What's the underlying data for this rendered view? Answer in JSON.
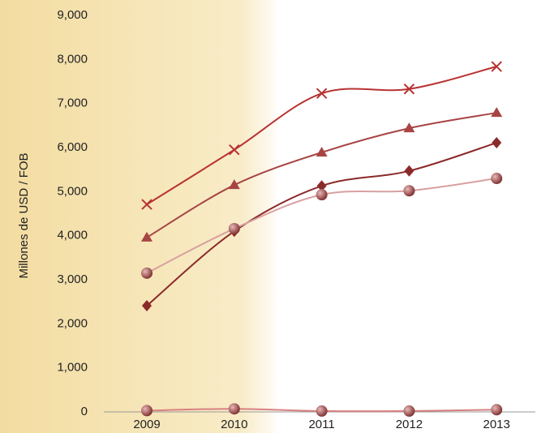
{
  "chart_data": {
    "type": "line",
    "y_label": "Millones de USD / FOB",
    "categories": [
      "2009",
      "2010",
      "2011",
      "2012",
      "2013"
    ],
    "ylim": [
      0,
      9000
    ],
    "yticks": [
      0,
      {
        "value": 1000,
        "label": "1,000"
      },
      {
        "value": 2000,
        "label": "2,000"
      },
      {
        "value": 3000,
        "label": "3,000"
      },
      {
        "value": 4000,
        "label": "4,000"
      },
      {
        "value": 5000,
        "label": "5,000"
      },
      {
        "value": 6000,
        "label": "6,000"
      },
      {
        "value": 7000,
        "label": "7,000"
      },
      {
        "value": 8000,
        "label": "8,000"
      },
      {
        "value": 9000,
        "label": "9,000"
      }
    ],
    "grid": false,
    "series": [
      {
        "color": "#b83232",
        "marker": "x",
        "values": [
          4710,
          5950,
          7230,
          7330,
          7840
        ]
      },
      {
        "color": "#a84444",
        "marker": "triangle",
        "values": [
          3960,
          5150,
          5890,
          6440,
          6790
        ]
      },
      {
        "color": "#8b2a2a",
        "marker": "diamond",
        "values": [
          2410,
          4100,
          5130,
          5470,
          6110
        ]
      },
      {
        "color": "#d9a0a0",
        "marker": "circle",
        "values": [
          3150,
          4160,
          4930,
          5020,
          5300
        ]
      },
      {
        "color": "#d88080",
        "marker": "circle",
        "values": [
          30,
          70,
          20,
          20,
          50
        ]
      }
    ]
  }
}
